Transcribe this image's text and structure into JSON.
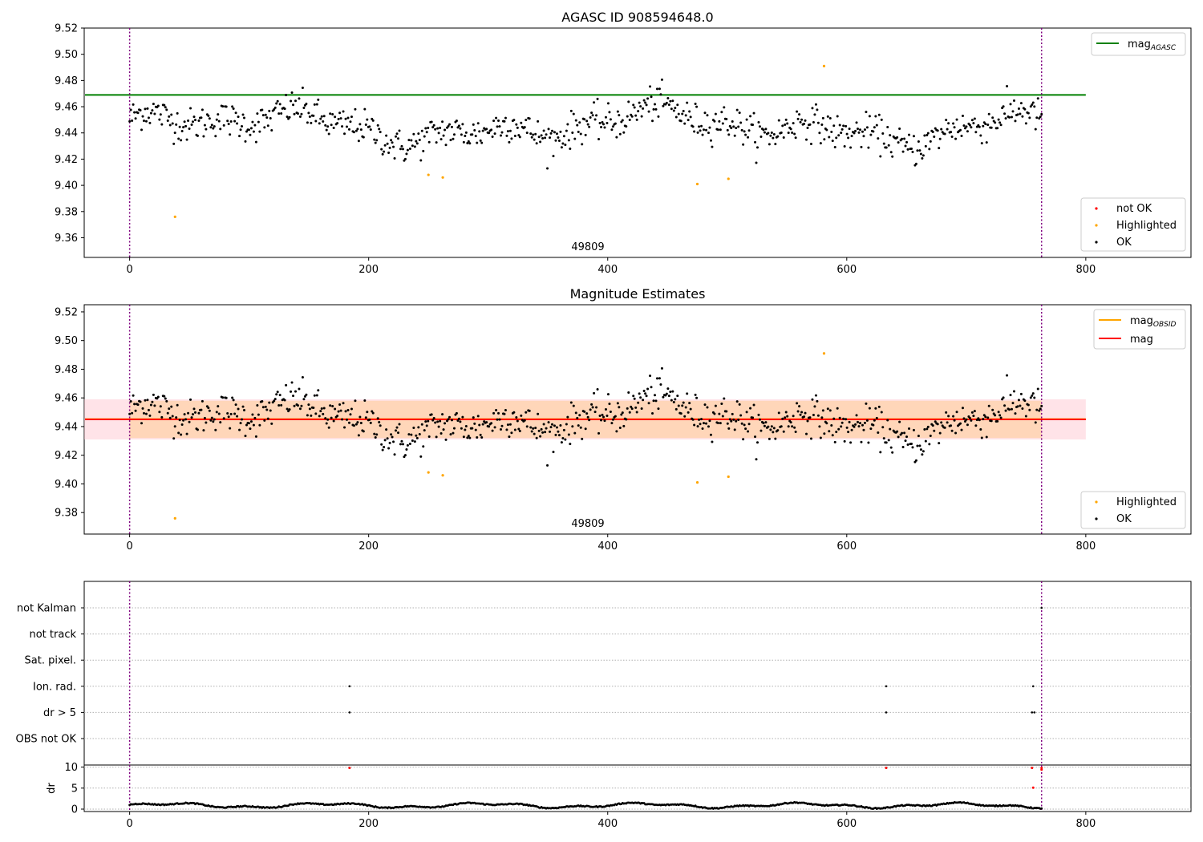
{
  "chart_data": [
    {
      "type": "scatter",
      "title": "AGASC ID 908594648.0",
      "xlabel": "",
      "ylabel": "",
      "xlim": [
        -38,
        888
      ],
      "ylim": [
        9.345,
        9.52
      ],
      "xticks": [
        0,
        200,
        400,
        600,
        800
      ],
      "yticks": [
        9.36,
        9.38,
        9.4,
        9.42,
        9.44,
        9.46,
        9.48,
        9.5,
        9.52
      ],
      "obsid_annotation": "49809",
      "obsid_x": 380,
      "obs_boundaries_x": [
        0,
        763
      ],
      "reference_lines": [
        {
          "name": "mag_AGASC",
          "y": 9.469,
          "x_range": [
            -38,
            800
          ],
          "color": "#008000"
        }
      ],
      "legend_top": {
        "position": "top-right",
        "entries": [
          {
            "label_main": "mag",
            "label_sub": "AGASC",
            "color": "#008000"
          }
        ]
      },
      "legend_bottom": {
        "position": "bottom-right",
        "entries": [
          {
            "label": "not OK",
            "color": "#ff0000"
          },
          {
            "label": "Highlighted",
            "color": "#ffa500"
          },
          {
            "label": "OK",
            "color": "#000000"
          }
        ]
      },
      "series": [
        {
          "name": "OK",
          "color": "#000000",
          "n": 765,
          "x_range": [
            0,
            763
          ],
          "level": 9.445,
          "spread": 0.012
        },
        {
          "name": "Highlighted",
          "color": "#ffa500",
          "points": [
            [
              38,
              9.376
            ],
            [
              250,
              9.408
            ],
            [
              262,
              9.406
            ],
            [
              475,
              9.401
            ],
            [
              501,
              9.405
            ],
            [
              581,
              9.491
            ]
          ]
        }
      ]
    },
    {
      "type": "scatter",
      "title": "Magnitude Estimates",
      "xlabel": "",
      "ylabel": "",
      "xlim": [
        -38,
        888
      ],
      "ylim": [
        9.365,
        9.525
      ],
      "xticks": [
        0,
        200,
        400,
        600,
        800
      ],
      "yticks": [
        9.38,
        9.4,
        9.42,
        9.44,
        9.46,
        9.48,
        9.5,
        9.52
      ],
      "obsid_annotation": "49809",
      "obsid_x": 380,
      "obs_boundaries_x": [
        0,
        763
      ],
      "reference_lines": [
        {
          "name": "mag_OBSID",
          "y": 9.4452,
          "x_range": [
            -38,
            800
          ],
          "color": "#ffa500"
        },
        {
          "name": "mag",
          "y": 9.445,
          "x_range": [
            -38,
            800
          ],
          "color": "#ff0000"
        }
      ],
      "bands": [
        {
          "y_range": [
            9.431,
            9.459
          ],
          "x_range": [
            -38,
            800
          ],
          "color": "#ffc0cb",
          "opacity": 0.45
        },
        {
          "y_range": [
            9.432,
            9.458
          ],
          "x_range": [
            0,
            763
          ],
          "color": "#ffa500",
          "opacity": 0.2
        }
      ],
      "legend_top": {
        "position": "top-right",
        "entries": [
          {
            "label_main": "mag",
            "label_sub": "OBSID",
            "color": "#ffa500"
          },
          {
            "label_main": "mag",
            "label_sub": "",
            "color": "#ff0000"
          }
        ]
      },
      "legend_bottom": {
        "position": "bottom-right",
        "entries": [
          {
            "label": "Highlighted",
            "color": "#ffa500"
          },
          {
            "label": "OK",
            "color": "#000000"
          }
        ]
      },
      "series": [
        {
          "name": "OK",
          "color": "#000000",
          "same_as_panel": 0
        },
        {
          "name": "Highlighted",
          "color": "#ffa500",
          "points": [
            [
              38,
              9.376
            ],
            [
              250,
              9.408
            ],
            [
              262,
              9.406
            ],
            [
              475,
              9.401
            ],
            [
              501,
              9.405
            ],
            [
              581,
              9.491
            ]
          ]
        }
      ]
    },
    {
      "type": "scatter",
      "title": "",
      "xlim": [
        -38,
        888
      ],
      "xticks": [
        0,
        200,
        400,
        600,
        800
      ],
      "obs_boundaries_x": [
        0,
        763
      ],
      "flag_categories": [
        "not Kalman",
        "not track",
        "Sat. pixel.",
        "Ion. rad.",
        "dr > 5",
        "OBS not OK"
      ],
      "flag_points": [
        {
          "category": "Ion. rad.",
          "x": [
            184,
            633,
            756
          ]
        },
        {
          "category": "dr > 5",
          "x": [
            184,
            633,
            755,
            757
          ]
        },
        {
          "category": "not Kalman",
          "x": [
            763
          ]
        }
      ]
    },
    {
      "type": "scatter",
      "title": "",
      "xlabel": "",
      "ylabel": "dr",
      "xlim": [
        -38,
        888
      ],
      "ylim": [
        0,
        10.5
      ],
      "xticks": [
        0,
        200,
        400,
        600,
        800
      ],
      "yticks": [
        0,
        5,
        10
      ],
      "obs_boundaries_x": [
        0,
        763
      ],
      "series": [
        {
          "name": "dr",
          "color": "#000000",
          "n": 765,
          "x_range": [
            0,
            763
          ]
        },
        {
          "name": "dr capped",
          "color": "#ff0000",
          "points": [
            [
              184,
              9.8
            ],
            [
              633,
              9.8
            ],
            [
              755,
              9.8
            ],
            [
              763,
              9.8
            ],
            [
              763,
              9.4
            ],
            [
              756,
              5.1
            ]
          ]
        }
      ]
    }
  ]
}
